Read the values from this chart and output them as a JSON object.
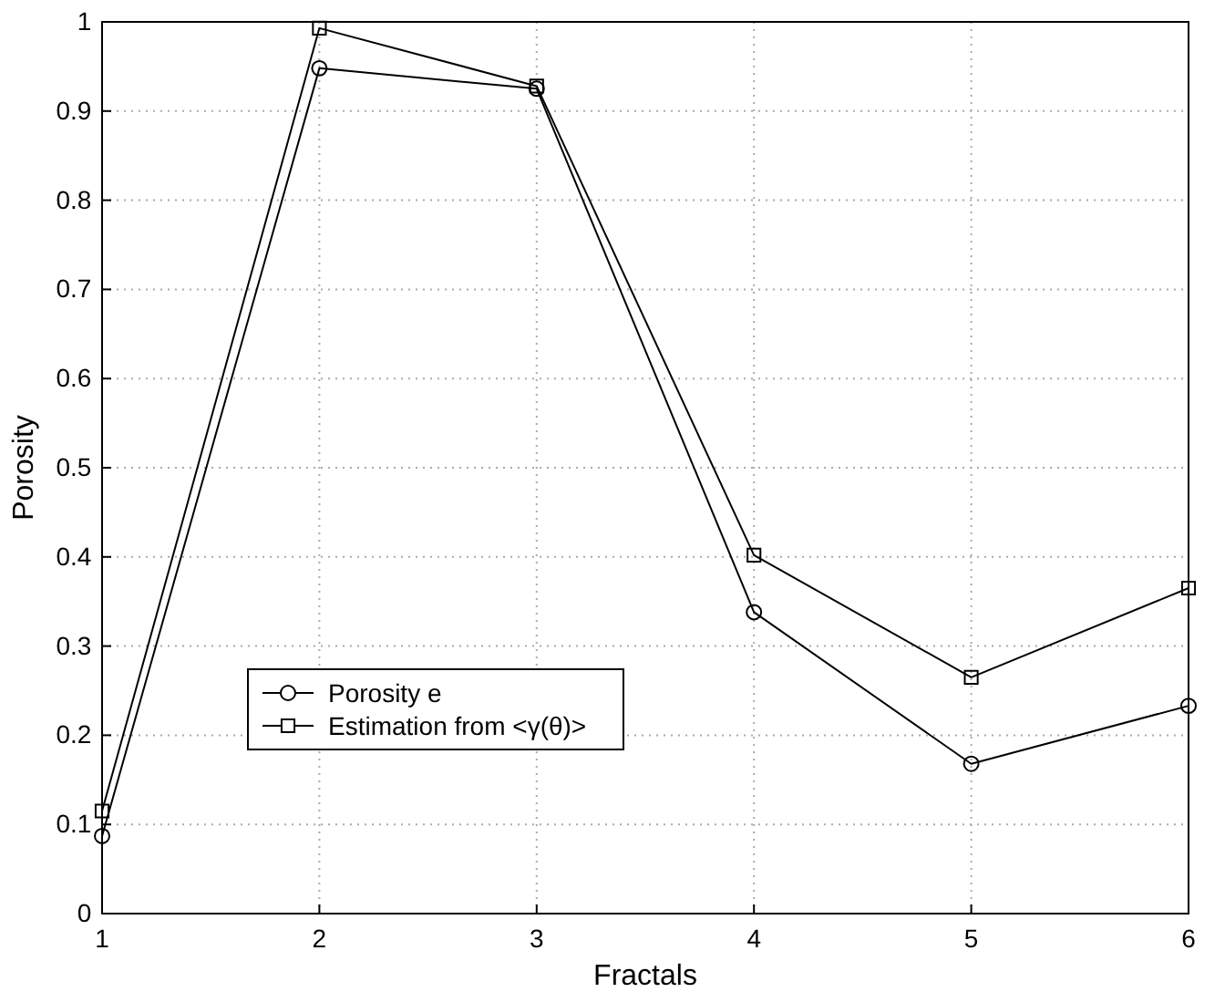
{
  "chart_data": {
    "type": "line",
    "xlabel": "Fractals",
    "ylabel": "Porosity",
    "x": [
      1,
      2,
      3,
      4,
      5,
      6
    ],
    "series": [
      {
        "name": "Porosity e",
        "color": "#000000",
        "marker": "circle",
        "values": [
          0.087,
          0.948,
          0.925,
          0.338,
          0.168,
          0.233
        ]
      },
      {
        "name": "Estimation from <γ(θ)>",
        "color": "#000000",
        "marker": "square",
        "values": [
          0.115,
          0.993,
          0.928,
          0.402,
          0.265,
          0.365
        ]
      }
    ],
    "xlim": [
      1,
      6
    ],
    "xticks": [
      1,
      2,
      3,
      4,
      5,
      6
    ],
    "ylim": [
      0,
      1
    ],
    "yticks": [
      0,
      0.1,
      0.2,
      0.3,
      0.4,
      0.5,
      0.6,
      0.7,
      0.8,
      0.9,
      1
    ],
    "grid": true,
    "legend": "bottom left",
    "line_style": "solid"
  }
}
